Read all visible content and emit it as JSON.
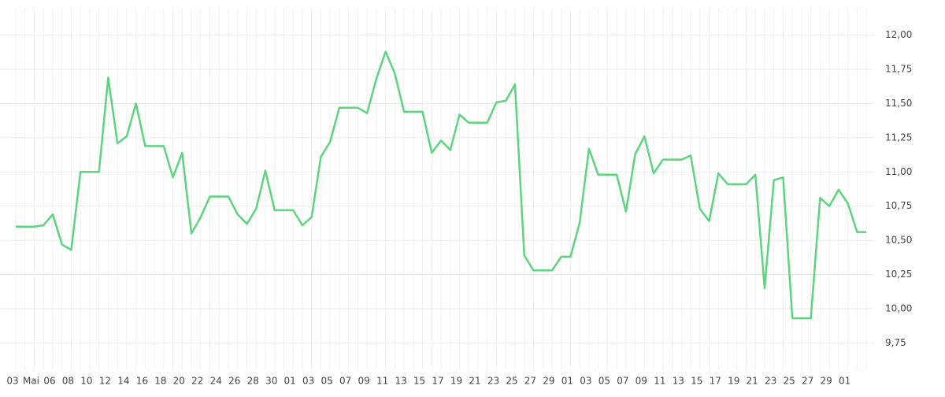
{
  "chart_data": {
    "type": "line",
    "categories": [
      "03",
      null,
      "Mai",
      null,
      "06",
      null,
      "08",
      null,
      "10",
      null,
      "12",
      null,
      "14",
      null,
      "16",
      null,
      "18",
      null,
      "20",
      null,
      "22",
      null,
      "24",
      null,
      "26",
      null,
      "28",
      null,
      "30",
      null,
      "01",
      null,
      "03",
      null,
      "05",
      null,
      "07",
      null,
      "09",
      null,
      "11",
      null,
      "13",
      null,
      "15",
      null,
      "17",
      null,
      "19",
      null,
      "21",
      null,
      "23",
      null,
      "25",
      null,
      "27",
      null,
      "29",
      null,
      "01",
      null,
      "03",
      null,
      "05",
      null,
      "07",
      null,
      "09",
      null,
      "11",
      null,
      "13",
      null,
      "15",
      null,
      "17",
      null,
      "19",
      null,
      "21",
      null,
      "23",
      null,
      "25",
      null,
      "27",
      null,
      "29",
      null,
      "01",
      null,
      null
    ],
    "values": [
      10.6,
      10.6,
      10.6,
      10.61,
      10.69,
      10.47,
      10.43,
      11.0,
      11.0,
      11.0,
      11.69,
      11.21,
      11.26,
      11.5,
      11.19,
      11.19,
      11.19,
      10.96,
      11.14,
      10.55,
      10.67,
      10.82,
      10.82,
      10.82,
      10.69,
      10.62,
      10.73,
      11.01,
      10.72,
      10.72,
      10.72,
      10.61,
      10.67,
      11.11,
      11.22,
      11.47,
      11.47,
      11.47,
      11.43,
      11.68,
      11.88,
      11.72,
      11.44,
      11.44,
      11.44,
      11.14,
      11.23,
      11.16,
      11.42,
      11.36,
      11.36,
      11.36,
      11.51,
      11.52,
      11.64,
      10.39,
      10.28,
      10.28,
      10.28,
      10.38,
      10.38,
      10.63,
      11.17,
      10.98,
      10.98,
      10.98,
      10.71,
      11.13,
      11.26,
      10.99,
      11.09,
      11.09,
      11.09,
      11.12,
      10.73,
      10.64,
      10.99,
      10.91,
      10.91,
      10.91,
      10.98,
      10.15,
      10.94,
      10.96,
      9.93,
      9.93,
      9.93,
      10.81,
      10.75,
      10.87,
      10.77,
      10.56,
      10.56
    ],
    "color": "#5dd47e",
    "ylim": [
      9.55,
      12.2
    ],
    "yticks": [
      {
        "value": 9.75,
        "label": "9,75"
      },
      {
        "value": 10,
        "label": "10,00"
      },
      {
        "value": 10.25,
        "label": "10,25"
      },
      {
        "value": 10.5,
        "label": "10,50"
      },
      {
        "value": 10.75,
        "label": "10,75"
      },
      {
        "value": 11,
        "label": "11,00"
      },
      {
        "value": 11.25,
        "label": "11,25"
      },
      {
        "value": 11.5,
        "label": "11,50"
      },
      {
        "value": 11.75,
        "label": "11,75"
      },
      {
        "value": 12,
        "label": "12,00"
      }
    ],
    "grid": true
  }
}
